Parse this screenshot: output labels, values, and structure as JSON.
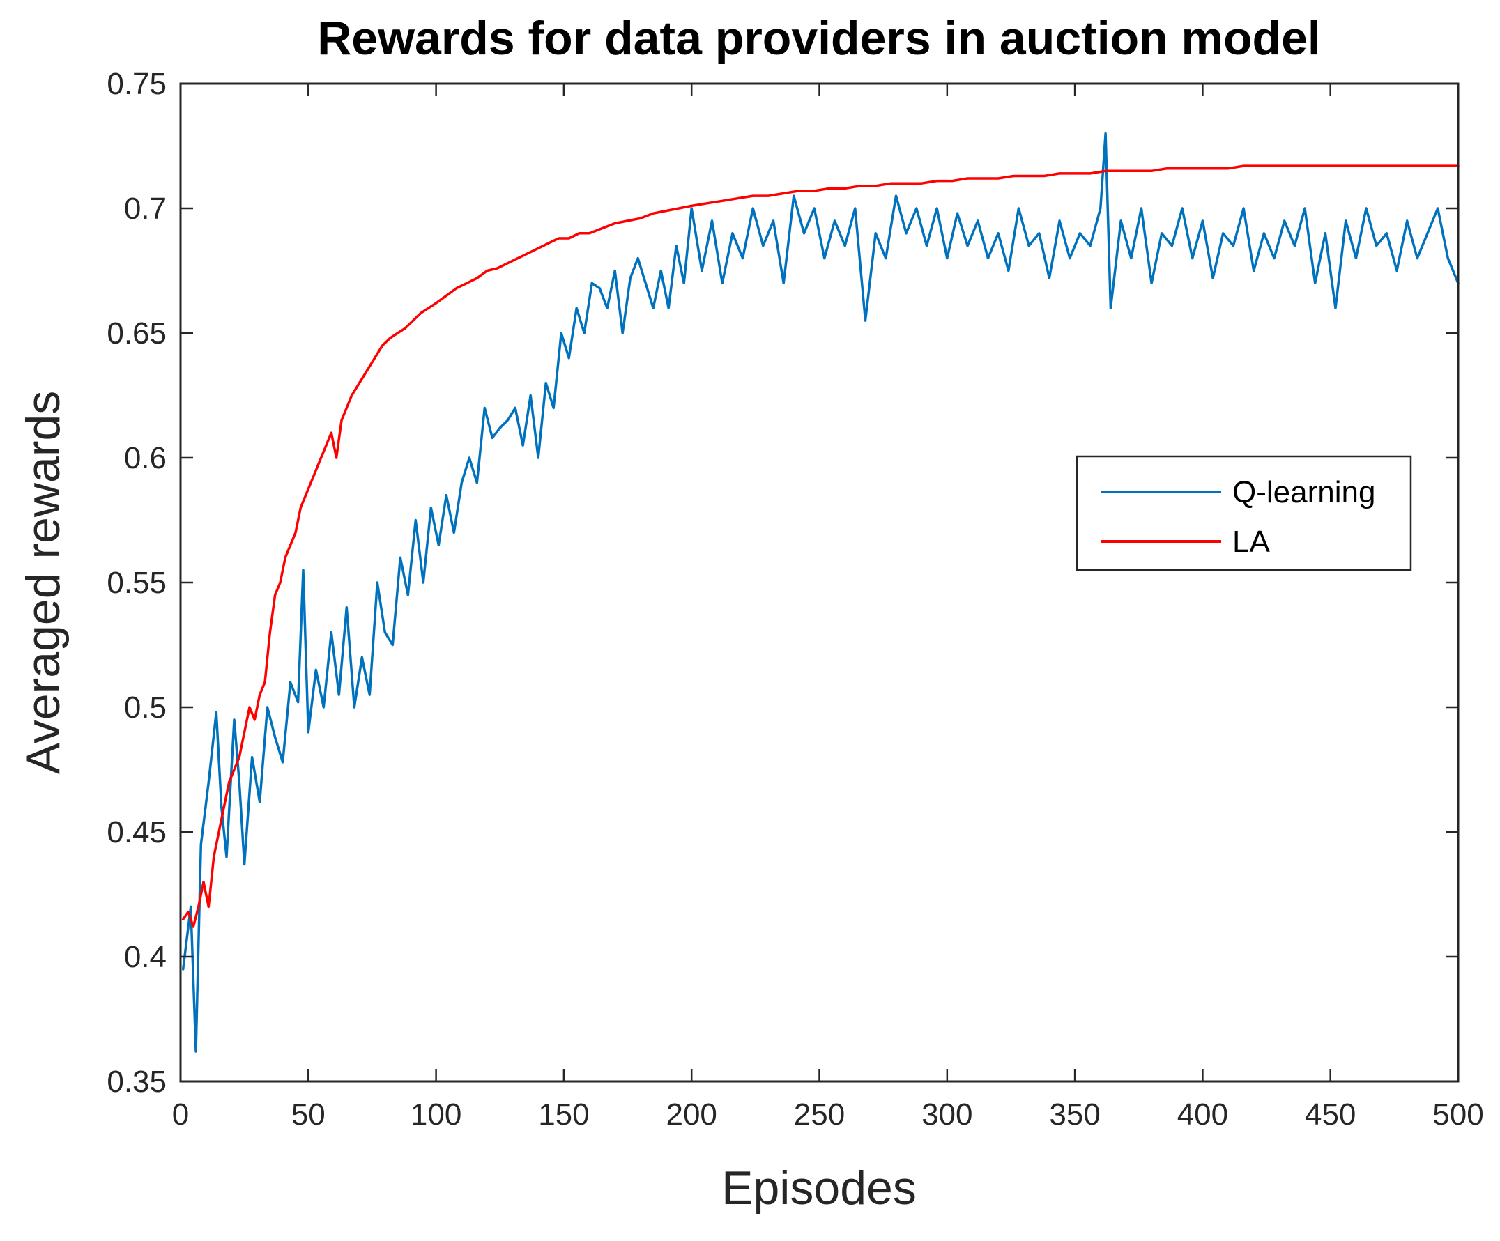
{
  "chart_data": {
    "type": "line",
    "title": "Rewards for data providers in auction model",
    "xlabel": "Episodes",
    "ylabel": "Averaged rewards",
    "xlim": [
      0,
      500
    ],
    "ylim": [
      0.35,
      0.75
    ],
    "x_ticks": [
      0,
      50,
      100,
      150,
      200,
      250,
      300,
      350,
      400,
      450,
      500
    ],
    "x_tick_labels": [
      "0",
      "50",
      "100",
      "150",
      "200",
      "250",
      "300",
      "350",
      "400",
      "450",
      "500"
    ],
    "y_ticks": [
      0.35,
      0.4,
      0.45,
      0.5,
      0.55,
      0.6,
      0.65,
      0.7,
      0.75
    ],
    "y_tick_labels": [
      "0.35",
      "0.4",
      "0.45",
      "0.5",
      "0.55",
      "0.6",
      "0.65",
      "0.7",
      "0.75"
    ],
    "grid": false,
    "legend_position": "right",
    "series": [
      {
        "name": "Q-learning",
        "color": "#0072BD",
        "x": [
          1,
          4,
          6,
          8,
          11,
          14,
          16,
          18,
          21,
          23,
          25,
          28,
          31,
          34,
          37,
          40,
          43,
          46,
          48,
          50,
          53,
          56,
          59,
          62,
          65,
          68,
          71,
          74,
          77,
          80,
          83,
          86,
          89,
          92,
          95,
          98,
          101,
          104,
          107,
          110,
          113,
          116,
          119,
          122,
          125,
          128,
          131,
          134,
          137,
          140,
          143,
          146,
          149,
          152,
          155,
          158,
          161,
          164,
          167,
          170,
          173,
          176,
          179,
          182,
          185,
          188,
          191,
          194,
          197,
          200,
          204,
          208,
          212,
          216,
          220,
          224,
          228,
          232,
          236,
          240,
          244,
          248,
          252,
          256,
          260,
          264,
          268,
          272,
          276,
          280,
          284,
          288,
          292,
          296,
          300,
          304,
          308,
          312,
          316,
          320,
          324,
          328,
          332,
          336,
          340,
          344,
          348,
          352,
          356,
          360,
          362,
          364,
          368,
          372,
          376,
          380,
          384,
          388,
          392,
          396,
          400,
          404,
          408,
          412,
          416,
          420,
          424,
          428,
          432,
          436,
          440,
          444,
          448,
          452,
          456,
          460,
          464,
          468,
          472,
          476,
          480,
          484,
          488,
          492,
          496,
          500
        ],
        "y": [
          0.395,
          0.42,
          0.362,
          0.445,
          0.47,
          0.498,
          0.46,
          0.44,
          0.495,
          0.47,
          0.437,
          0.48,
          0.462,
          0.5,
          0.488,
          0.478,
          0.51,
          0.502,
          0.555,
          0.49,
          0.515,
          0.5,
          0.53,
          0.505,
          0.54,
          0.5,
          0.52,
          0.505,
          0.55,
          0.53,
          0.525,
          0.56,
          0.545,
          0.575,
          0.55,
          0.58,
          0.565,
          0.585,
          0.57,
          0.59,
          0.6,
          0.59,
          0.62,
          0.608,
          0.612,
          0.615,
          0.62,
          0.605,
          0.625,
          0.6,
          0.63,
          0.62,
          0.65,
          0.64,
          0.66,
          0.65,
          0.67,
          0.668,
          0.66,
          0.675,
          0.65,
          0.672,
          0.68,
          0.67,
          0.66,
          0.675,
          0.66,
          0.685,
          0.67,
          0.7,
          0.675,
          0.695,
          0.67,
          0.69,
          0.68,
          0.7,
          0.685,
          0.695,
          0.67,
          0.705,
          0.69,
          0.7,
          0.68,
          0.695,
          0.685,
          0.7,
          0.655,
          0.69,
          0.68,
          0.705,
          0.69,
          0.7,
          0.685,
          0.7,
          0.68,
          0.698,
          0.685,
          0.695,
          0.68,
          0.69,
          0.675,
          0.7,
          0.685,
          0.69,
          0.672,
          0.695,
          0.68,
          0.69,
          0.685,
          0.7,
          0.73,
          0.66,
          0.695,
          0.68,
          0.7,
          0.67,
          0.69,
          0.685,
          0.7,
          0.68,
          0.695,
          0.672,
          0.69,
          0.685,
          0.7,
          0.675,
          0.69,
          0.68,
          0.695,
          0.685,
          0.7,
          0.67,
          0.69,
          0.66,
          0.695,
          0.68,
          0.7,
          0.685,
          0.69,
          0.675,
          0.695,
          0.68,
          0.69,
          0.7,
          0.68,
          0.67
        ]
      },
      {
        "name": "LA",
        "color": "#FF0000",
        "x": [
          1,
          3,
          5,
          7,
          9,
          11,
          13,
          15,
          17,
          19,
          21,
          23,
          25,
          27,
          29,
          31,
          33,
          35,
          37,
          39,
          41,
          43,
          45,
          47,
          49,
          51,
          53,
          55,
          57,
          59,
          61,
          63,
          65,
          67,
          70,
          73,
          76,
          79,
          82,
          85,
          88,
          91,
          94,
          97,
          100,
          104,
          108,
          112,
          116,
          120,
          124,
          128,
          132,
          136,
          140,
          144,
          148,
          152,
          156,
          160,
          165,
          170,
          175,
          180,
          185,
          190,
          195,
          200,
          206,
          212,
          218,
          224,
          230,
          236,
          242,
          248,
          254,
          260,
          266,
          272,
          278,
          284,
          290,
          296,
          302,
          308,
          314,
          320,
          326,
          332,
          338,
          344,
          350,
          356,
          362,
          368,
          374,
          380,
          386,
          392,
          398,
          404,
          410,
          416,
          422,
          428,
          434,
          440,
          446,
          452,
          458,
          464,
          470,
          476,
          482,
          488,
          494,
          500
        ],
        "y": [
          0.415,
          0.418,
          0.412,
          0.42,
          0.43,
          0.42,
          0.44,
          0.45,
          0.46,
          0.47,
          0.475,
          0.48,
          0.49,
          0.5,
          0.495,
          0.505,
          0.51,
          0.53,
          0.545,
          0.55,
          0.56,
          0.565,
          0.57,
          0.58,
          0.585,
          0.59,
          0.595,
          0.6,
          0.605,
          0.61,
          0.6,
          0.615,
          0.62,
          0.625,
          0.63,
          0.635,
          0.64,
          0.645,
          0.648,
          0.65,
          0.652,
          0.655,
          0.658,
          0.66,
          0.662,
          0.665,
          0.668,
          0.67,
          0.672,
          0.675,
          0.676,
          0.678,
          0.68,
          0.682,
          0.684,
          0.686,
          0.688,
          0.688,
          0.69,
          0.69,
          0.692,
          0.694,
          0.695,
          0.696,
          0.698,
          0.699,
          0.7,
          0.701,
          0.702,
          0.703,
          0.704,
          0.705,
          0.705,
          0.706,
          0.707,
          0.707,
          0.708,
          0.708,
          0.709,
          0.709,
          0.71,
          0.71,
          0.71,
          0.711,
          0.711,
          0.712,
          0.712,
          0.712,
          0.713,
          0.713,
          0.713,
          0.714,
          0.714,
          0.714,
          0.715,
          0.715,
          0.715,
          0.715,
          0.716,
          0.716,
          0.716,
          0.716,
          0.716,
          0.717,
          0.717,
          0.717,
          0.717,
          0.717,
          0.717,
          0.717,
          0.717,
          0.717,
          0.717,
          0.717,
          0.717,
          0.717,
          0.717,
          0.717
        ]
      }
    ]
  }
}
